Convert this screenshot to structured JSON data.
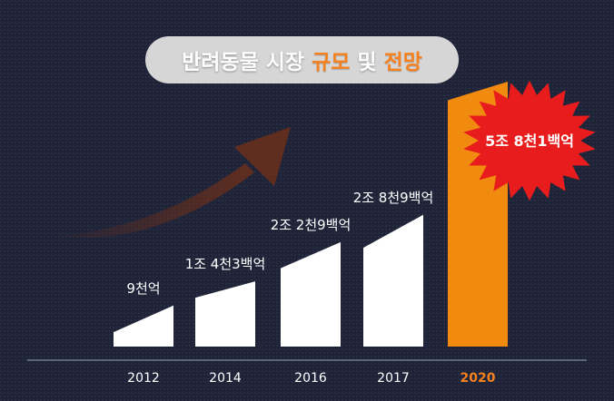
{
  "title": {
    "part1": "반려동물 시장",
    "part2": "규모",
    "part3": "및",
    "part4": "전망"
  },
  "colors": {
    "background": "#1f2338",
    "bar": "#ffffff",
    "highlight_bar": "#f18b0f",
    "burst": "#e81c1c",
    "accent_text": "#f5821f"
  },
  "chart_data": {
    "type": "bar",
    "title": "반려동물 시장 규모 및 전망",
    "categories": [
      "2012",
      "2014",
      "2016",
      "2017",
      "2020"
    ],
    "values": [
      9000,
      14300,
      22900,
      28900,
      58100
    ],
    "units": "억원",
    "value_labels": [
      "9천억",
      "1조 4천3백억",
      "2조 2천9백억",
      "2조 8천9백억",
      "5조 8천1백억"
    ],
    "highlight_index": 4,
    "ylim": [
      0,
      58100
    ],
    "grid": false,
    "legend": "none"
  }
}
